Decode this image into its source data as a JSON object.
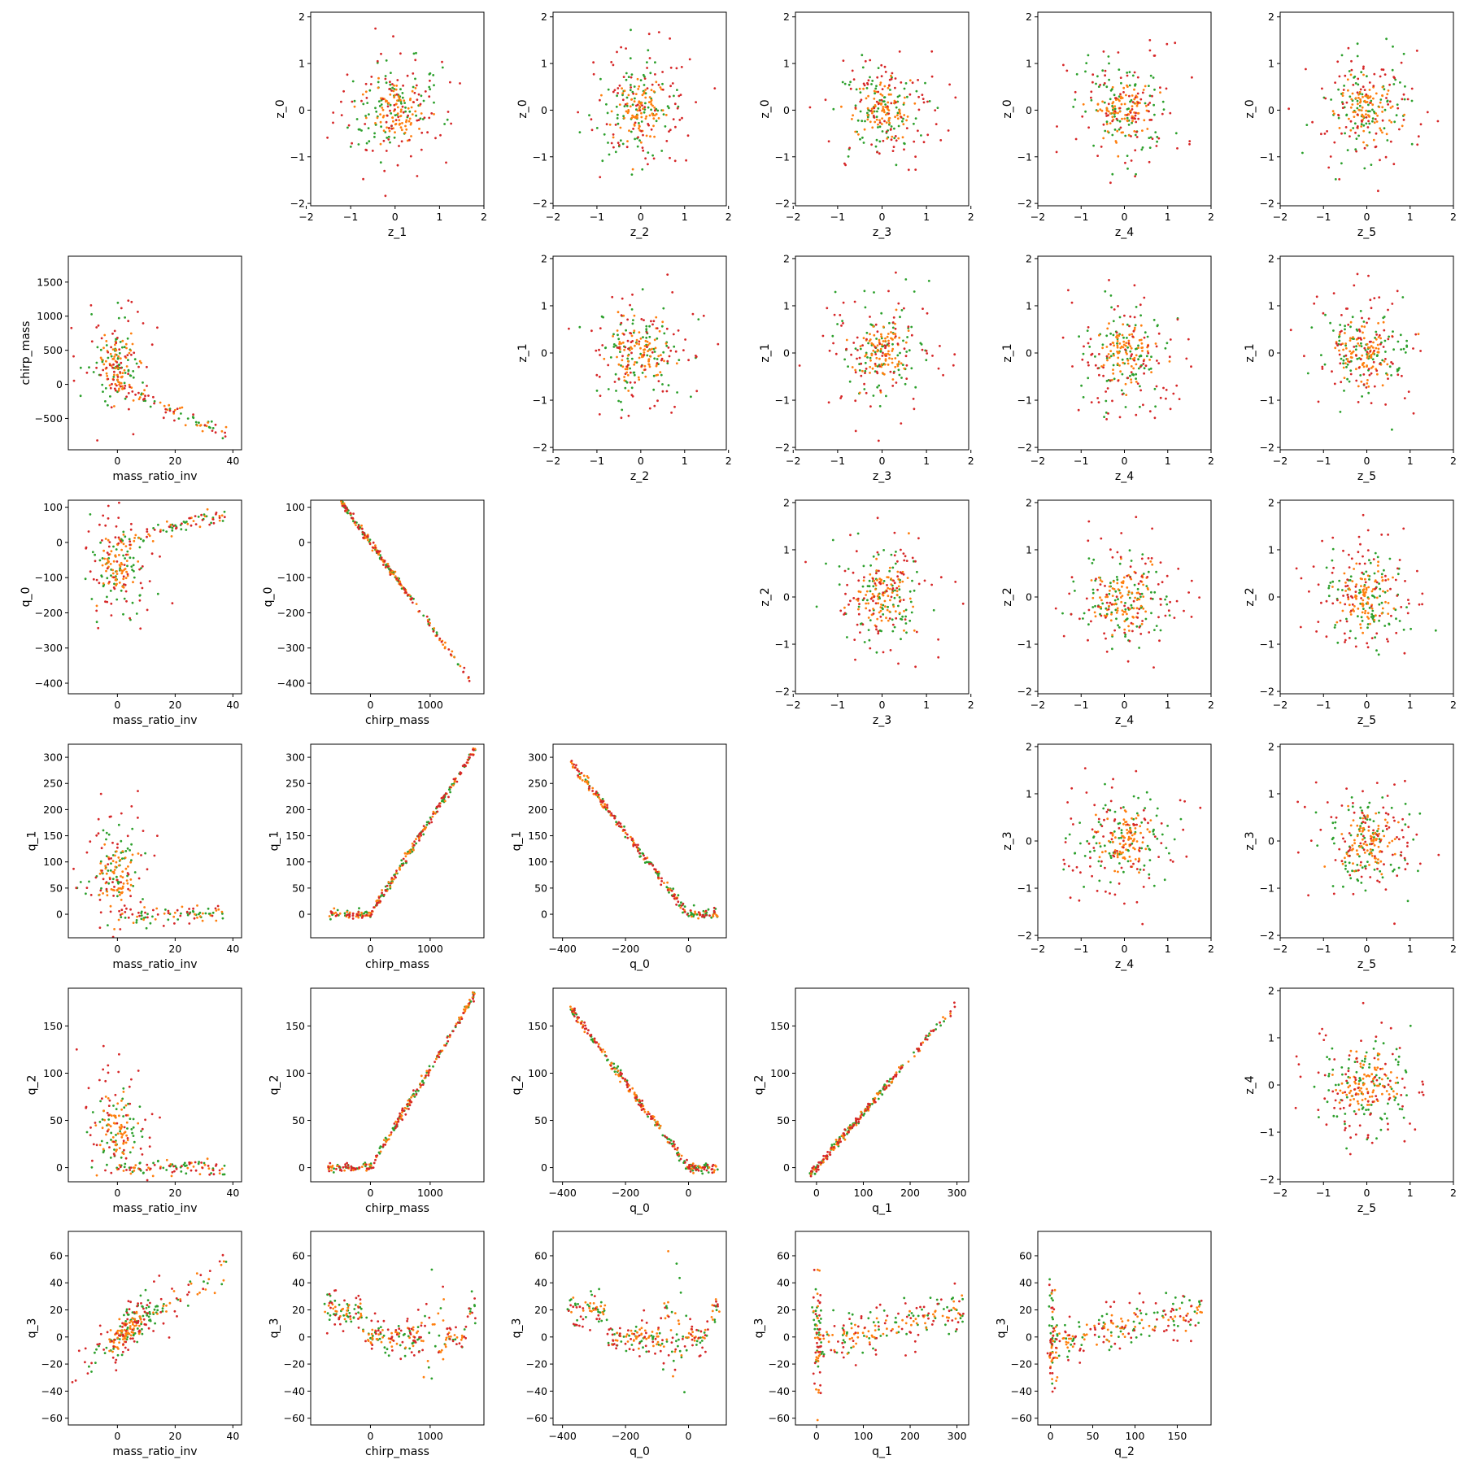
{
  "figure": {
    "background": "#ffffff",
    "type": "pairwise scatter matrix"
  },
  "colors": {
    "red": "#d62728",
    "green": "#2ca02c",
    "orange": "#ff7f0e",
    "frame": "#000000"
  },
  "chart_data": [
    {
      "type": "scatter",
      "row": 0,
      "col": 1,
      "xlabel": "z_1",
      "ylabel": "z_0",
      "xlim": [
        -1.9,
        2.0
      ],
      "ylim": [
        -2.05,
        2.1
      ],
      "xticks": [
        -2,
        -1,
        0,
        1,
        2
      ],
      "yticks": [
        -2,
        -1,
        0,
        1,
        2
      ],
      "pattern": "gaussian",
      "params": [
        0,
        0,
        0.75,
        0.75
      ]
    },
    {
      "type": "scatter",
      "row": 0,
      "col": 2,
      "xlabel": "z_2",
      "ylabel": "z_0",
      "xlim": [
        -2.0,
        1.95
      ],
      "ylim": [
        -2.05,
        2.1
      ],
      "xticks": [
        -2,
        -1,
        0,
        1,
        2
      ],
      "yticks": [
        -2,
        -1,
        0,
        1,
        2
      ],
      "pattern": "gaussian",
      "params": [
        0,
        0,
        0.75,
        0.75
      ]
    },
    {
      "type": "scatter",
      "row": 0,
      "col": 3,
      "xlabel": "z_3",
      "ylabel": "z_0",
      "xlim": [
        -1.95,
        1.95
      ],
      "ylim": [
        -2.05,
        2.1
      ],
      "xticks": [
        -2,
        -1,
        0,
        1,
        2
      ],
      "yticks": [
        -2,
        -1,
        0,
        1,
        2
      ],
      "pattern": "gaussian",
      "params": [
        0,
        0,
        0.75,
        0.75
      ]
    },
    {
      "type": "scatter",
      "row": 0,
      "col": 4,
      "xlabel": "z_4",
      "ylabel": "z_0",
      "xlim": [
        -2.0,
        2.0
      ],
      "ylim": [
        -2.05,
        2.1
      ],
      "xticks": [
        -2,
        -1,
        0,
        1,
        2
      ],
      "yticks": [
        -2,
        -1,
        0,
        1,
        2
      ],
      "pattern": "gaussian",
      "params": [
        0,
        0,
        0.75,
        0.75
      ]
    },
    {
      "type": "scatter",
      "row": 0,
      "col": 5,
      "xlabel": "z_5",
      "ylabel": "z_0",
      "xlim": [
        -2.0,
        2.0
      ],
      "ylim": [
        -2.05,
        2.1
      ],
      "xticks": [
        -2,
        -1,
        0,
        1,
        2
      ],
      "yticks": [
        -2,
        -1,
        0,
        1,
        2
      ],
      "pattern": "gaussian",
      "params": [
        0,
        0,
        0.75,
        0.75
      ]
    },
    {
      "type": "scatter",
      "row": 1,
      "col": 0,
      "xlabel": "mass_ratio_inv",
      "ylabel": "chirp_mass",
      "xlim": [
        -17,
        43
      ],
      "ylim": [
        -960,
        1880
      ],
      "xticks": [
        0,
        20,
        40
      ],
      "yticks": [
        -500,
        0,
        500,
        1000,
        1500
      ],
      "pattern": "fan",
      "params": [
        0,
        300,
        7,
        400
      ]
    },
    {
      "type": "scatter",
      "row": 1,
      "col": 2,
      "xlabel": "z_2",
      "ylabel": "z_1",
      "xlim": [
        -2.0,
        1.95
      ],
      "ylim": [
        -2.05,
        2.05
      ],
      "xticks": [
        -2,
        -1,
        0,
        1,
        2
      ],
      "yticks": [
        -2,
        -1,
        0,
        1,
        2
      ],
      "pattern": "gaussian",
      "params": [
        0,
        0,
        0.75,
        0.75
      ]
    },
    {
      "type": "scatter",
      "row": 1,
      "col": 3,
      "xlabel": "z_3",
      "ylabel": "z_1",
      "xlim": [
        -1.95,
        1.95
      ],
      "ylim": [
        -2.05,
        2.05
      ],
      "xticks": [
        -2,
        -1,
        0,
        1,
        2
      ],
      "yticks": [
        -2,
        -1,
        0,
        1,
        2
      ],
      "pattern": "gaussian",
      "params": [
        0,
        0,
        0.75,
        0.75
      ]
    },
    {
      "type": "scatter",
      "row": 1,
      "col": 4,
      "xlabel": "z_4",
      "ylabel": "z_1",
      "xlim": [
        -2.0,
        2.0
      ],
      "ylim": [
        -2.05,
        2.05
      ],
      "xticks": [
        -2,
        -1,
        0,
        1,
        2
      ],
      "yticks": [
        -2,
        -1,
        0,
        1,
        2
      ],
      "pattern": "gaussian",
      "params": [
        0,
        0,
        0.75,
        0.75
      ]
    },
    {
      "type": "scatter",
      "row": 1,
      "col": 5,
      "xlabel": "z_5",
      "ylabel": "z_1",
      "xlim": [
        -2.0,
        2.0
      ],
      "ylim": [
        -2.05,
        2.05
      ],
      "xticks": [
        -2,
        -1,
        0,
        1,
        2
      ],
      "yticks": [
        -2,
        -1,
        0,
        1,
        2
      ],
      "pattern": "gaussian",
      "params": [
        0,
        0,
        0.75,
        0.75
      ]
    },
    {
      "type": "scatter",
      "row": 2,
      "col": 0,
      "xlabel": "mass_ratio_inv",
      "ylabel": "q_0",
      "xlim": [
        -17,
        43
      ],
      "ylim": [
        -430,
        120
      ],
      "xticks": [
        0,
        20,
        40
      ],
      "yticks": [
        -400,
        -300,
        -200,
        -100,
        0,
        100
      ],
      "pattern": "fan",
      "params": [
        0,
        -70,
        7,
        -80
      ]
    },
    {
      "type": "scatter",
      "row": 2,
      "col": 1,
      "xlabel": "chirp_mass",
      "ylabel": "q_0",
      "xlim": [
        -1000,
        1900
      ],
      "ylim": [
        -430,
        120
      ],
      "xticks": [
        0,
        1000
      ],
      "yticks": [
        -400,
        -300,
        -200,
        -100,
        0,
        100
      ],
      "pattern": "diag",
      "params": [
        -0.235,
        0
      ]
    },
    {
      "type": "scatter",
      "row": 2,
      "col": 3,
      "xlabel": "z_3",
      "ylabel": "z_2",
      "xlim": [
        -1.95,
        1.95
      ],
      "ylim": [
        -2.05,
        2.05
      ],
      "xticks": [
        -2,
        -1,
        0,
        1,
        2
      ],
      "yticks": [
        -2,
        -1,
        0,
        1,
        2
      ],
      "pattern": "gaussian",
      "params": [
        0,
        0,
        0.75,
        0.75
      ]
    },
    {
      "type": "scatter",
      "row": 2,
      "col": 4,
      "xlabel": "z_4",
      "ylabel": "z_2",
      "xlim": [
        -2.0,
        2.0
      ],
      "ylim": [
        -2.05,
        2.05
      ],
      "xticks": [
        -2,
        -1,
        0,
        1,
        2
      ],
      "yticks": [
        -2,
        -1,
        0,
        1,
        2
      ],
      "pattern": "gaussian",
      "params": [
        0,
        0,
        0.75,
        0.75
      ]
    },
    {
      "type": "scatter",
      "row": 2,
      "col": 5,
      "xlabel": "z_5",
      "ylabel": "z_2",
      "xlim": [
        -2.0,
        2.0
      ],
      "ylim": [
        -2.05,
        2.05
      ],
      "xticks": [
        -2,
        -1,
        0,
        1,
        2
      ],
      "yticks": [
        -2,
        -1,
        0,
        1,
        2
      ],
      "pattern": "gaussian",
      "params": [
        0,
        0,
        0.75,
        0.75
      ]
    },
    {
      "type": "scatter",
      "row": 3,
      "col": 0,
      "xlabel": "mass_ratio_inv",
      "ylabel": "q_1",
      "xlim": [
        -17,
        43
      ],
      "ylim": [
        -45,
        325
      ],
      "xticks": [
        0,
        20,
        40
      ],
      "yticks": [
        0,
        50,
        100,
        150,
        200,
        250,
        300
      ],
      "pattern": "fan",
      "params": [
        0,
        70,
        7,
        60
      ]
    },
    {
      "type": "scatter",
      "row": 3,
      "col": 1,
      "xlabel": "chirp_mass",
      "ylabel": "q_1",
      "xlim": [
        -1000,
        1900
      ],
      "ylim": [
        -45,
        325
      ],
      "xticks": [
        0,
        1000
      ],
      "yticks": [
        0,
        50,
        100,
        150,
        200,
        250,
        300
      ],
      "pattern": "hinge",
      "params": [
        0.18,
        0
      ]
    },
    {
      "type": "scatter",
      "row": 3,
      "col": 2,
      "xlabel": "q_0",
      "ylabel": "q_1",
      "xlim": [
        -430,
        120
      ],
      "ylim": [
        -45,
        325
      ],
      "xticks": [
        -400,
        -200,
        0
      ],
      "yticks": [
        0,
        50,
        100,
        150,
        200,
        250,
        300
      ],
      "pattern": "hinge",
      "params": [
        -0.78,
        0
      ]
    },
    {
      "type": "scatter",
      "row": 3,
      "col": 4,
      "xlabel": "z_4",
      "ylabel": "z_3",
      "xlim": [
        -2.0,
        2.0
      ],
      "ylim": [
        -2.05,
        2.05
      ],
      "xticks": [
        -2,
        -1,
        0,
        1,
        2
      ],
      "yticks": [
        -2,
        -1,
        0,
        1,
        2
      ],
      "pattern": "gaussian",
      "params": [
        0,
        0,
        0.75,
        0.75
      ]
    },
    {
      "type": "scatter",
      "row": 3,
      "col": 5,
      "xlabel": "z_5",
      "ylabel": "z_3",
      "xlim": [
        -2.0,
        2.0
      ],
      "ylim": [
        -2.05,
        2.05
      ],
      "xticks": [
        -2,
        -1,
        0,
        1,
        2
      ],
      "yticks": [
        -2,
        -1,
        0,
        1,
        2
      ],
      "pattern": "gaussian",
      "params": [
        0,
        0,
        0.75,
        0.75
      ]
    },
    {
      "type": "scatter",
      "row": 4,
      "col": 0,
      "xlabel": "mass_ratio_inv",
      "ylabel": "q_2",
      "xlim": [
        -17,
        43
      ],
      "ylim": [
        -15,
        190
      ],
      "xticks": [
        0,
        20,
        40
      ],
      "yticks": [
        0,
        50,
        100,
        150
      ],
      "pattern": "fan",
      "params": [
        0,
        40,
        7,
        35
      ]
    },
    {
      "type": "scatter",
      "row": 4,
      "col": 1,
      "xlabel": "chirp_mass",
      "ylabel": "q_2",
      "xlim": [
        -1000,
        1900
      ],
      "ylim": [
        -15,
        190
      ],
      "xticks": [
        0,
        1000
      ],
      "yticks": [
        0,
        50,
        100,
        150
      ],
      "pattern": "hinge",
      "params": [
        0.105,
        0
      ]
    },
    {
      "type": "scatter",
      "row": 4,
      "col": 2,
      "xlabel": "q_0",
      "ylabel": "q_2",
      "xlim": [
        -430,
        120
      ],
      "ylim": [
        -15,
        190
      ],
      "xticks": [
        -400,
        -200,
        0
      ],
      "yticks": [
        0,
        50,
        100,
        150
      ],
      "pattern": "hinge",
      "params": [
        -0.45,
        0
      ]
    },
    {
      "type": "scatter",
      "row": 4,
      "col": 3,
      "xlabel": "q_1",
      "ylabel": "q_2",
      "xlim": [
        -45,
        325
      ],
      "ylim": [
        -15,
        190
      ],
      "xticks": [
        0,
        100,
        200,
        300
      ],
      "yticks": [
        0,
        50,
        100,
        150
      ],
      "pattern": "diag",
      "params": [
        0.58,
        0
      ]
    },
    {
      "type": "scatter",
      "row": 4,
      "col": 5,
      "xlabel": "z_5",
      "ylabel": "z_4",
      "xlim": [
        -2.0,
        2.0
      ],
      "ylim": [
        -2.05,
        2.05
      ],
      "xticks": [
        -2,
        -1,
        0,
        1,
        2
      ],
      "yticks": [
        -2,
        -1,
        0,
        1,
        2
      ],
      "pattern": "gaussian",
      "params": [
        0,
        0,
        0.75,
        0.75
      ]
    },
    {
      "type": "scatter",
      "row": 5,
      "col": 0,
      "xlabel": "mass_ratio_inv",
      "ylabel": "q_3",
      "xlim": [
        -17,
        43
      ],
      "ylim": [
        -65,
        78
      ],
      "xticks": [
        0,
        20,
        40
      ],
      "yticks": [
        -60,
        -40,
        -20,
        0,
        20,
        40,
        60
      ],
      "pattern": "curve",
      "params": [
        0,
        0
      ]
    },
    {
      "type": "scatter",
      "row": 5,
      "col": 1,
      "xlabel": "chirp_mass",
      "ylabel": "q_3",
      "xlim": [
        -1000,
        1900
      ],
      "ylim": [
        -65,
        78
      ],
      "xticks": [
        0,
        1000
      ],
      "yticks": [
        -60,
        -40,
        -20,
        0,
        20,
        40,
        60
      ],
      "pattern": "vshape",
      "params": [
        0,
        0
      ]
    },
    {
      "type": "scatter",
      "row": 5,
      "col": 2,
      "xlabel": "q_0",
      "ylabel": "q_3",
      "xlim": [
        -430,
        120
      ],
      "ylim": [
        -65,
        78
      ],
      "xticks": [
        -400,
        -200,
        0
      ],
      "yticks": [
        -60,
        -40,
        -20,
        0,
        20,
        40,
        60
      ],
      "pattern": "vshape",
      "params": [
        0,
        0
      ]
    },
    {
      "type": "scatter",
      "row": 5,
      "col": 3,
      "xlabel": "q_1",
      "ylabel": "q_3",
      "xlim": [
        -45,
        325
      ],
      "ylim": [
        -65,
        78
      ],
      "xticks": [
        0,
        100,
        200,
        300
      ],
      "yticks": [
        -60,
        -40,
        -20,
        0,
        20,
        40,
        60
      ],
      "pattern": "spike",
      "params": [
        0,
        0
      ]
    },
    {
      "type": "scatter",
      "row": 5,
      "col": 4,
      "xlabel": "q_2",
      "ylabel": "q_3",
      "xlim": [
        -15,
        190
      ],
      "ylim": [
        -65,
        78
      ],
      "xticks": [
        0,
        50,
        100,
        150
      ],
      "yticks": [
        -60,
        -40,
        -20,
        0,
        20,
        40,
        60
      ],
      "pattern": "spike",
      "params": [
        0,
        0
      ]
    }
  ]
}
